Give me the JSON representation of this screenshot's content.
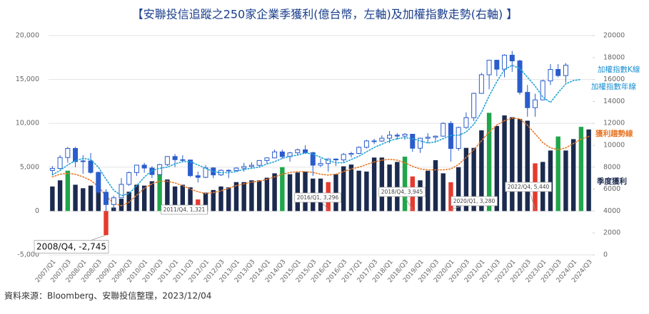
{
  "chart_data": {
    "type": "bar-line-candlestick",
    "title": "【安聯投信追蹤之250家企業季獲利(億台幣，左軸)及加權指數走勢(右軸) 】",
    "source": "資料來源：Bloomberg、安聯投信整理，2023/12/04",
    "categories": [
      "2007/Q1",
      null,
      "2007/Q3",
      null,
      "2008/Q1",
      null,
      "2008/Q3",
      null,
      "2009/Q1",
      null,
      "2009/Q3",
      null,
      "2010/Q1",
      null,
      "2010/Q3",
      null,
      "2011/Q1",
      null,
      "2011/Q3",
      null,
      "2012/Q1",
      null,
      "2012/Q3",
      null,
      "2013/Q1",
      null,
      "2013/Q3",
      null,
      "2014/Q1",
      null,
      "2014/Q3",
      null,
      "2015/Q1",
      null,
      "2015/Q3",
      null,
      "2016/Q1",
      null,
      "2016/Q3",
      null,
      "2017/Q1",
      null,
      "2017/Q3",
      null,
      "2018/Q1",
      null,
      "2018/Q3",
      null,
      "2019/Q1",
      null,
      "2019/Q3",
      null,
      "2020/Q1",
      null,
      "2020/Q3",
      null,
      "2021/Q1",
      null,
      "2021/Q3",
      null,
      "2022/Q1",
      null,
      "2022/Q3",
      null,
      "2023/Q1",
      null,
      "2023/Q3",
      null,
      "2024/Q1",
      null,
      "2024/Q3"
    ],
    "ylim": [
      -5000,
      20000
    ],
    "yticks": [
      {
        "value": -5000,
        "label": "-5,000"
      },
      0,
      {
        "value": 5000,
        "label": "5,000"
      },
      {
        "value": 10000,
        "label": "10,000"
      },
      {
        "value": 15000,
        "label": "15,000"
      },
      {
        "value": 20000,
        "label": "20,000"
      }
    ],
    "y2lim": [
      0,
      20000
    ],
    "y2ticks": [
      0,
      2000,
      4000,
      6000,
      8000,
      10000,
      12000,
      14000,
      16000,
      18000,
      20000
    ],
    "grid": true,
    "series": [
      {
        "name": "季度獲利",
        "type": "bar",
        "color": "#1b2a4e",
        "values": [
          2800,
          3500,
          4600,
          3000,
          2600,
          2900,
          4400,
          -2745,
          400,
          1400,
          2200,
          3000,
          2900,
          3400,
          4200,
          3600,
          2800,
          3000,
          2700,
          1321,
          2100,
          2400,
          2800,
          2700,
          3300,
          3300,
          3500,
          3500,
          3800,
          4300,
          5000,
          4200,
          4400,
          4500,
          3700,
          3700,
          3296,
          4200,
          5100,
          5300,
          4600,
          4500,
          6100,
          6100,
          5300,
          5600,
          6200,
          3945,
          3500,
          4600,
          5800,
          4300,
          3280,
          5000,
          7200,
          7200,
          9200,
          11200,
          9700,
          10900,
          10700,
          10500,
          10300,
          5440,
          5600,
          6900,
          8500,
          6900,
          8200,
          9600,
          9300
        ],
        "colors": [
          "#1b2a4e",
          "#1b2a4e",
          "#1fa64a",
          "#1b2a4e",
          "#1b2a4e",
          "#1b2a4e",
          "#1b2a4e",
          "#e63a2e",
          "#1b2a4e",
          "#1b2a4e",
          "#1b2a4e",
          "#1b2a4e",
          "#1b2a4e",
          "#1b2a4e",
          "#1fa64a",
          "#1b2a4e",
          "#1b2a4e",
          "#1b2a4e",
          "#1b2a4e",
          "#e63a2e",
          "#1b2a4e",
          "#1b2a4e",
          "#1b2a4e",
          "#1b2a4e",
          "#1b2a4e",
          "#1b2a4e",
          "#1b2a4e",
          "#1b2a4e",
          "#1b2a4e",
          "#1b2a4e",
          "#1fa64a",
          "#1b2a4e",
          "#1b2a4e",
          "#1b2a4e",
          "#1b2a4e",
          "#1b2a4e",
          "#e63a2e",
          "#1b2a4e",
          "#1b2a4e",
          "#1b2a4e",
          "#1b2a4e",
          "#1b2a4e",
          "#1b2a4e",
          "#1b2a4e",
          "#1b2a4e",
          "#1b2a4e",
          "#1fa64a",
          "#e63a2e",
          "#1b2a4e",
          "#1b2a4e",
          "#1b2a4e",
          "#1b2a4e",
          "#e63a2e",
          "#1b2a4e",
          "#1b2a4e",
          "#1b2a4e",
          "#1b2a4e",
          "#1fa64a",
          "#1b2a4e",
          "#1b2a4e",
          "#1b2a4e",
          "#1b2a4e",
          "#1b2a4e",
          "#e63a2e",
          "#1b2a4e",
          "#1b2a4e",
          "#1fa64a",
          "#1b2a4e",
          "#1b2a4e",
          "#1fa64a",
          "#1b2a4e"
        ],
        "value_labels": [
          null,
          null,
          null,
          null,
          null,
          null,
          null,
          "2008/Q4, -2,745",
          null,
          null,
          null,
          null,
          null,
          null,
          null,
          null,
          null,
          null,
          null,
          "2011/Q4, 1,321",
          null,
          null,
          null,
          null,
          null,
          null,
          null,
          null,
          null,
          null,
          null,
          null,
          null,
          null,
          null,
          null,
          "2016/Q1, 3,296",
          null,
          null,
          null,
          null,
          null,
          null,
          null,
          null,
          null,
          null,
          "2018/Q4, 3,945",
          null,
          null,
          null,
          null,
          "2020/Q1, 3,280",
          null,
          null,
          null,
          null,
          null,
          null,
          null,
          null,
          null,
          null,
          "2022/Q4, 5,440",
          null,
          null,
          null,
          null,
          null,
          null,
          null
        ]
      },
      {
        "name": "獲利趨勢線",
        "type": "line",
        "color": "#e8792a",
        "values": [
          3900,
          4200,
          4300,
          4200,
          3900,
          3500,
          2800,
          1700,
          900,
          600,
          1000,
          1800,
          2600,
          3100,
          3400,
          3400,
          3200,
          2900,
          2500,
          2200,
          2000,
          2100,
          2300,
          2600,
          2900,
          3100,
          3300,
          3400,
          3600,
          3900,
          4200,
          4400,
          4500,
          4500,
          4400,
          4200,
          4100,
          4200,
          4500,
          4800,
          5000,
          5300,
          5600,
          5800,
          5900,
          5800,
          5500,
          5100,
          4800,
          4700,
          4700,
          4700,
          4800,
          5300,
          6100,
          7000,
          8000,
          9000,
          9800,
          10300,
          10600,
          10500,
          9800,
          8800,
          7800,
          7200,
          7000,
          7200,
          7700,
          8200,
          8500
        ]
      },
      {
        "name": "加權指數K線",
        "type": "candlestick",
        "axis": "y2",
        "color": "#2a5ccc",
        "open": [
          7700,
          7884,
          8883,
          9711,
          8506,
          8572,
          7524,
          5719,
          4591,
          5210,
          6432,
          7509,
          8188,
          7920,
          7329,
          8237,
          8972,
          8683,
          8652,
          7225,
          7072,
          7933,
          7296,
          7715,
          7700,
          7918,
          8062,
          8174,
          8611,
          8849,
          9393,
          8966,
          9307,
          9586,
          9323,
          8181,
          8338,
          8744,
          8666,
          9166,
          9253,
          9811,
          10395,
          10383,
          10642,
          10919,
          10836,
          11006,
          9727,
          10641,
          10730,
          10829,
          11997,
          9708,
          11621,
          12515,
          14732,
          16431,
          17755,
          16934,
          18218,
          17693,
          14825,
          13425,
          14138,
          15868,
          16916,
          16353,
          null,
          null,
          null
        ],
        "high": [
          8100,
          9100,
          9850,
          9860,
          9100,
          9300,
          7600,
          6000,
          5400,
          7000,
          7600,
          8200,
          8400,
          8100,
          8300,
          9000,
          9200,
          9100,
          8700,
          7600,
          8200,
          8000,
          7800,
          7800,
          8000,
          8400,
          8450,
          8650,
          8900,
          9600,
          9600,
          9400,
          9700,
          10000,
          9400,
          8800,
          8800,
          8800,
          9300,
          9400,
          9900,
          10500,
          10600,
          10900,
          11300,
          11100,
          11100,
          11000,
          10700,
          11100,
          10900,
          12100,
          12200,
          11700,
          13000,
          14800,
          16600,
          17800,
          17800,
          18300,
          18600,
          17800,
          15500,
          14700,
          16000,
          17400,
          17400,
          17500,
          null,
          null,
          null
        ],
        "low": [
          7300,
          7800,
          8400,
          8000,
          7400,
          7400,
          5600,
          4000,
          4100,
          5200,
          6300,
          7200,
          7500,
          7000,
          7300,
          8100,
          8000,
          8500,
          7100,
          6600,
          7000,
          7000,
          7200,
          7000,
          7600,
          7600,
          7900,
          8000,
          8300,
          8800,
          8800,
          8500,
          9100,
          9200,
          7200,
          8000,
          7600,
          8100,
          8400,
          8900,
          9200,
          9700,
          10100,
          10300,
          10200,
          10500,
          10500,
          9400,
          9300,
          10200,
          10300,
          10800,
          8500,
          9500,
          11500,
          12200,
          14700,
          15100,
          16300,
          16200,
          16700,
          14600,
          12600,
          12600,
          14100,
          15500,
          16200,
          15700,
          null,
          null,
          null
        ],
        "close": [
          7884,
          8883,
          9711,
          8506,
          8572,
          7524,
          5719,
          4591,
          5210,
          6432,
          7509,
          8188,
          7920,
          7329,
          8237,
          8972,
          8683,
          8652,
          7225,
          7072,
          7933,
          7296,
          7715,
          7700,
          7918,
          8062,
          8174,
          8611,
          8849,
          9393,
          8966,
          9307,
          9586,
          9323,
          8181,
          8338,
          8744,
          8666,
          9166,
          9253,
          9811,
          10395,
          10383,
          10642,
          10919,
          10836,
          11006,
          9727,
          10641,
          10730,
          10829,
          11997,
          9708,
          11621,
          12515,
          14732,
          16431,
          17755,
          16934,
          18218,
          17693,
          14825,
          13425,
          14138,
          15868,
          16916,
          16353,
          17300,
          null,
          null,
          null
        ]
      },
      {
        "name": "加權指數年線",
        "type": "line",
        "axis": "y2",
        "color": "#1fa3d8",
        "values": [
          7300,
          7700,
          8200,
          8600,
          8800,
          8700,
          8000,
          6900,
          5900,
          5400,
          5600,
          6300,
          7100,
          7700,
          7900,
          8000,
          8300,
          8500,
          8500,
          8200,
          7900,
          7600,
          7500,
          7500,
          7600,
          7800,
          7900,
          8000,
          8300,
          8500,
          8800,
          9000,
          9100,
          9300,
          9200,
          8900,
          8600,
          8400,
          8400,
          8700,
          9000,
          9400,
          9800,
          10100,
          10400,
          10600,
          10700,
          10600,
          10400,
          10200,
          10300,
          10600,
          10900,
          10900,
          11200,
          11900,
          13000,
          14500,
          15800,
          16900,
          17300,
          17000,
          16200,
          15400,
          14400,
          13900,
          14800,
          15600,
          15900,
          16000,
          null
        ]
      }
    ]
  }
}
